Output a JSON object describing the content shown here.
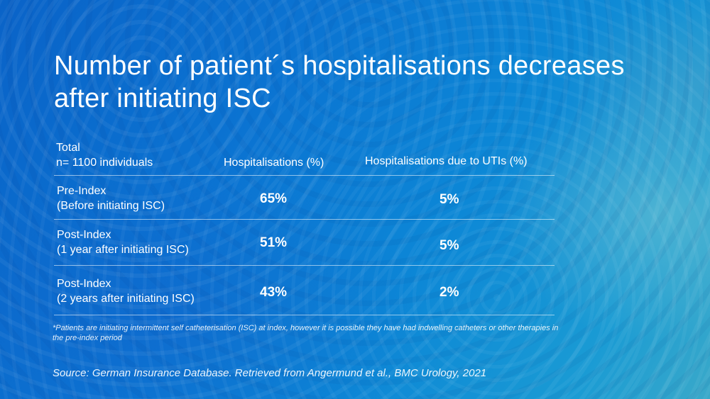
{
  "slide": {
    "title": "Number of patient´s hospitalisations decreases after initiating ISC",
    "table": {
      "meta_line1": "Total",
      "meta_line2": "n= 1100 individuals",
      "headers": [
        "Hospitalisations (%)",
        "Hospitalisations due to UTIs (%)"
      ],
      "rows": [
        {
          "label_line1": "Pre-Index",
          "label_line2": "(Before initiating ISC)",
          "hospitalisations": "65%",
          "uti": "5%"
        },
        {
          "label_line1": "Post-Index",
          "label_line2": "(1 year after initiating ISC)",
          "hospitalisations": "51%",
          "uti": "5%"
        },
        {
          "label_line1": "Post-Index",
          "label_line2": "(2 years after initiating ISC)",
          "hospitalisations": "43%",
          "uti": "2%"
        }
      ]
    },
    "footnote": "*Patients are initiating intermittent self catheterisation (ISC) at index, however it is possible they have had indwelling catheters or other therapies in the pre-index period",
    "source": "Source: German Insurance Database. Retrieved from Angermund et al., BMC Urology, 2021"
  },
  "colors": {
    "background": "#0b74d2",
    "text": "#ffffff"
  }
}
